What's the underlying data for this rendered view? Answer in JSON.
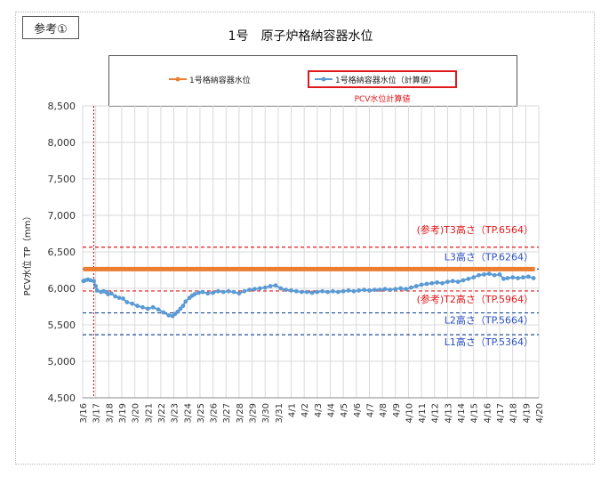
{
  "reference_label": "参考①",
  "colors": {
    "measured": "#ed7d31",
    "calculated": "#5b9bd5",
    "t_line": "#e0191b",
    "l_line": "#1f4e9c",
    "event_line": "#c00000",
    "grid": "#d9d9d9"
  },
  "chart_data": {
    "type": "line",
    "title": "1号　原子炉格納容器水位",
    "ylabel": "PCV水位 TP（mm）",
    "xlabel": "",
    "ylim": [
      4500,
      8500
    ],
    "yticks": [
      4500,
      5000,
      5500,
      6000,
      6500,
      7000,
      7500,
      8000,
      8500
    ],
    "ytick_labels": [
      "4,500",
      "5,000",
      "5,500",
      "6,000",
      "6,500",
      "7,000",
      "7,500",
      "8,000",
      "8,500"
    ],
    "xlim": [
      0,
      35
    ],
    "xtick_labels": [
      "3/16",
      "3/17",
      "3/18",
      "3/19",
      "3/20",
      "3/21",
      "3/22",
      "3/23",
      "3/24",
      "3/25",
      "3/26",
      "3/27",
      "3/28",
      "3/29",
      "3/30",
      "3/31",
      "4/1",
      "4/2",
      "4/3",
      "4/4",
      "4/5",
      "4/6",
      "4/7",
      "4/8",
      "4/9",
      "4/10",
      "4/11",
      "4/12",
      "4/13",
      "4/14",
      "4/15",
      "4/16",
      "4/17",
      "4/18",
      "4/19",
      "4/20"
    ],
    "grid": true,
    "legend_position": "top",
    "event_marker_x": 0.85,
    "series": [
      {
        "name": "1号格納容器水位",
        "color": "#ed7d31",
        "x": [
          0.05,
          34.7
        ],
        "y": [
          6264,
          6264
        ]
      },
      {
        "name": "1号格納容器水位（計算値）",
        "color": "#5b9bd5",
        "x": [
          0.05,
          0.2,
          0.4,
          0.6,
          0.85,
          1.0,
          1.1,
          1.4,
          1.6,
          1.8,
          1.95,
          2.2,
          2.5,
          2.8,
          3.1,
          3.4,
          3.8,
          4.2,
          4.6,
          5.0,
          5.4,
          5.8,
          6.2,
          6.6,
          6.9,
          7.1,
          7.3,
          7.5,
          7.7,
          7.9,
          8.2,
          8.4,
          8.6,
          8.9,
          9.2,
          9.6,
          10.0,
          10.4,
          10.8,
          11.2,
          11.6,
          12.0,
          12.4,
          12.8,
          13.2,
          13.6,
          14.0,
          14.4,
          14.8,
          15.2,
          15.6,
          16.0,
          16.4,
          16.8,
          17.2,
          17.6,
          18.0,
          18.4,
          18.8,
          19.2,
          19.6,
          20.0,
          20.4,
          20.8,
          21.2,
          21.6,
          22.0,
          22.4,
          22.8,
          23.2,
          23.6,
          24.0,
          24.4,
          24.8,
          25.2,
          25.6,
          26.0,
          26.4,
          26.8,
          27.2,
          27.6,
          28.0,
          28.4,
          28.8,
          29.2,
          29.6,
          30.0,
          30.4,
          30.8,
          31.2,
          31.6,
          32.0,
          32.3,
          32.6,
          33.0,
          33.4,
          33.8,
          34.2,
          34.6
        ],
        "y": [
          6100,
          6110,
          6120,
          6110,
          6100,
          6030,
          5970,
          5950,
          5960,
          5950,
          5920,
          5930,
          5890,
          5870,
          5860,
          5810,
          5790,
          5760,
          5740,
          5720,
          5740,
          5710,
          5670,
          5630,
          5620,
          5650,
          5680,
          5720,
          5760,
          5820,
          5870,
          5900,
          5920,
          5940,
          5950,
          5930,
          5940,
          5960,
          5950,
          5960,
          5950,
          5930,
          5960,
          5980,
          5990,
          6000,
          6010,
          6030,
          6040,
          6000,
          5980,
          5970,
          5960,
          5950,
          5950,
          5940,
          5950,
          5960,
          5950,
          5960,
          5950,
          5960,
          5970,
          5960,
          5970,
          5980,
          5970,
          5980,
          5980,
          5990,
          5980,
          5990,
          6000,
          5990,
          6010,
          6030,
          6050,
          6060,
          6070,
          6080,
          6070,
          6090,
          6100,
          6090,
          6110,
          6130,
          6150,
          6180,
          6190,
          6200,
          6180,
          6190,
          6130,
          6140,
          6150,
          6140,
          6150,
          6160,
          6140
        ]
      }
    ],
    "reference_lines": [
      {
        "label": "(参考)T3高さ（TP.6564）",
        "value": 6564,
        "kind": "t"
      },
      {
        "label": "L3高さ（TP.6264）",
        "value": 6264,
        "kind": "l"
      },
      {
        "label": "(参考)T2高さ（TP.5964）",
        "value": 5964,
        "kind": "t"
      },
      {
        "label": "L2高さ（TP.5664）",
        "value": 5664,
        "kind": "l"
      },
      {
        "label": "L1高さ（TP.5364）",
        "value": 5364,
        "kind": "l"
      }
    ],
    "legend_note": "PCV水位計算値"
  }
}
